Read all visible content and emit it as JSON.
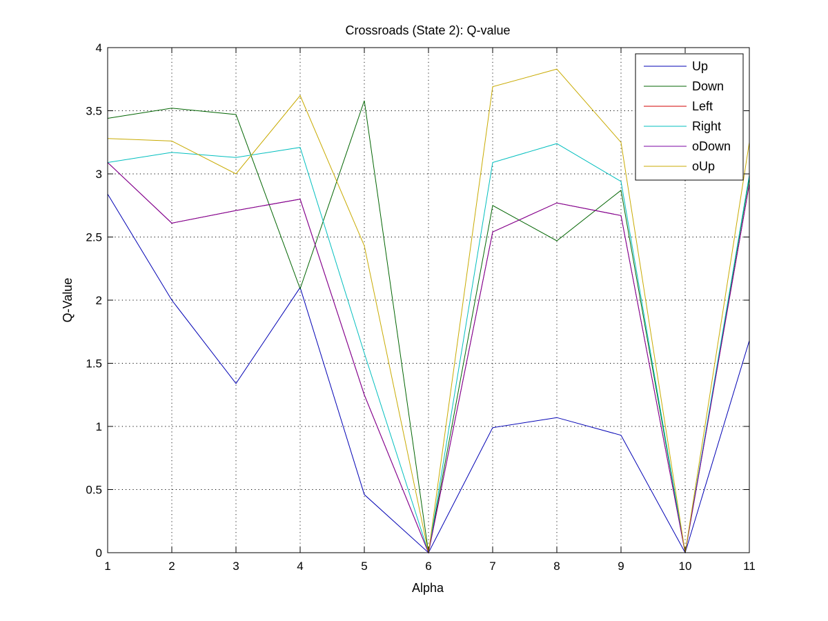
{
  "chart_data": {
    "type": "line",
    "title": "Crossroads (State 2): Q-value",
    "xlabel": "Alpha",
    "ylabel": "Q-Value",
    "xlim": [
      1,
      11
    ],
    "ylim": [
      0,
      4
    ],
    "xticks": [
      1,
      2,
      3,
      4,
      5,
      6,
      7,
      8,
      9,
      10,
      11
    ],
    "yticks": [
      0,
      0.5,
      1,
      1.5,
      2,
      2.5,
      3,
      3.5,
      4
    ],
    "grid": true,
    "legend_position": "top-right",
    "x": [
      1,
      2,
      3,
      4,
      5,
      6,
      7,
      8,
      9,
      10,
      11
    ],
    "series": [
      {
        "name": "Up",
        "color": "#0000b4",
        "values": [
          2.84,
          2.0,
          1.34,
          2.1,
          0.46,
          0.0,
          0.99,
          1.07,
          0.93,
          0.0,
          1.68
        ]
      },
      {
        "name": "Down",
        "color": "#006400",
        "values": [
          3.44,
          3.52,
          3.47,
          2.09,
          3.58,
          0.0,
          2.75,
          2.47,
          2.87,
          0.0,
          2.97
        ]
      },
      {
        "name": "Left",
        "color": "#d20000",
        "values": [
          3.09,
          2.61,
          2.71,
          2.8,
          1.25,
          0.0,
          2.54,
          2.77,
          2.67,
          0.0,
          2.92
        ]
      },
      {
        "name": "Right",
        "color": "#00bebe",
        "values": [
          3.09,
          3.17,
          3.13,
          3.21,
          1.58,
          0.0,
          3.09,
          3.24,
          2.94,
          0.0,
          2.99
        ]
      },
      {
        "name": "oDown",
        "color": "#7800a0",
        "values": [
          3.09,
          2.61,
          2.71,
          2.8,
          1.25,
          0.0,
          2.54,
          2.77,
          2.67,
          0.0,
          2.92
        ]
      },
      {
        "name": "oUp",
        "color": "#c8aa00",
        "values": [
          3.28,
          3.26,
          3.0,
          3.62,
          2.43,
          0.0,
          3.69,
          3.83,
          3.25,
          0.0,
          3.25
        ]
      }
    ]
  }
}
